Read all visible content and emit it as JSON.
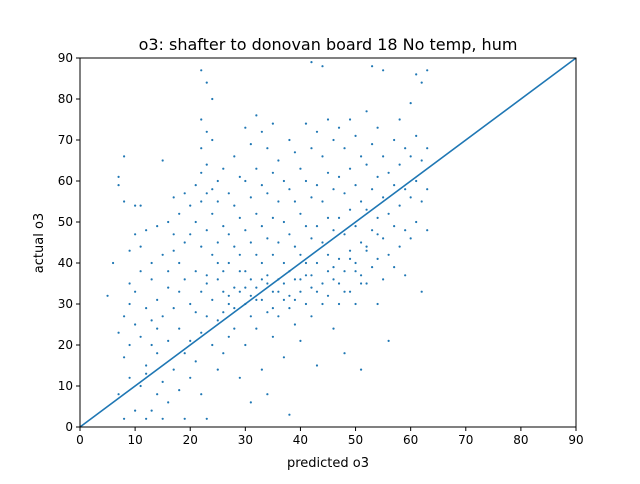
{
  "chart_data": {
    "type": "scatter",
    "title": "o3: shafter to donovan board 18 No temp, hum",
    "xlabel": "predicted o3",
    "ylabel": "actual o3",
    "xlim": [
      0,
      90
    ],
    "ylim": [
      0,
      90
    ],
    "xticks": [
      0,
      10,
      20,
      30,
      40,
      50,
      60,
      70,
      80,
      90
    ],
    "yticks": [
      0,
      10,
      20,
      30,
      40,
      50,
      60,
      70,
      80,
      90
    ],
    "grid": false,
    "marker_color": "#1f77b4",
    "line_color": "#1f77b4",
    "reference_line": {
      "x": [
        0,
        90
      ],
      "y": [
        0,
        90
      ]
    },
    "series": [
      {
        "points": [
          [
            5,
            32
          ],
          [
            6,
            40
          ],
          [
            7,
            23
          ],
          [
            7,
            8
          ],
          [
            7,
            61
          ],
          [
            7,
            59
          ],
          [
            8,
            66
          ],
          [
            8,
            55
          ],
          [
            8,
            17
          ],
          [
            8,
            2
          ],
          [
            8,
            27
          ],
          [
            9,
            12
          ],
          [
            9,
            35
          ],
          [
            9,
            30
          ],
          [
            9,
            43
          ],
          [
            9,
            20
          ],
          [
            10,
            54
          ],
          [
            10,
            47
          ],
          [
            10,
            4
          ],
          [
            10,
            25
          ],
          [
            10,
            33
          ],
          [
            11,
            54
          ],
          [
            11,
            44
          ],
          [
            11,
            10
          ],
          [
            11,
            22
          ],
          [
            11,
            38
          ],
          [
            12,
            29
          ],
          [
            12,
            2
          ],
          [
            12,
            15
          ],
          [
            12,
            48
          ],
          [
            12,
            13
          ],
          [
            13,
            26
          ],
          [
            13,
            36
          ],
          [
            13,
            4
          ],
          [
            13,
            40
          ],
          [
            13,
            20
          ],
          [
            14,
            49
          ],
          [
            14,
            31
          ],
          [
            14,
            8
          ],
          [
            14,
            24
          ],
          [
            14,
            18
          ],
          [
            15,
            65
          ],
          [
            15,
            42
          ],
          [
            15,
            27
          ],
          [
            15,
            11
          ],
          [
            15,
            2
          ],
          [
            16,
            50
          ],
          [
            16,
            34
          ],
          [
            16,
            21
          ],
          [
            16,
            6
          ],
          [
            16,
            38
          ],
          [
            17,
            56
          ],
          [
            17,
            43
          ],
          [
            17,
            29
          ],
          [
            17,
            14
          ],
          [
            17,
            47
          ],
          [
            18,
            52
          ],
          [
            18,
            40
          ],
          [
            18,
            33
          ],
          [
            18,
            24
          ],
          [
            18,
            9
          ],
          [
            19,
            57
          ],
          [
            19,
            45
          ],
          [
            19,
            36
          ],
          [
            19,
            18
          ],
          [
            19,
            2
          ],
          [
            20,
            54
          ],
          [
            20,
            47
          ],
          [
            20,
            30
          ],
          [
            20,
            21
          ],
          [
            20,
            12
          ],
          [
            21,
            59
          ],
          [
            21,
            50
          ],
          [
            21,
            38
          ],
          [
            21,
            28
          ],
          [
            21,
            16
          ],
          [
            22,
            87
          ],
          [
            22,
            75
          ],
          [
            22,
            68
          ],
          [
            22,
            62
          ],
          [
            22,
            55
          ],
          [
            22,
            44
          ],
          [
            22,
            33
          ],
          [
            22,
            23
          ],
          [
            22,
            8
          ],
          [
            23,
            84
          ],
          [
            23,
            72
          ],
          [
            23,
            64
          ],
          [
            23,
            57
          ],
          [
            23,
            48
          ],
          [
            23,
            37
          ],
          [
            23,
            27
          ],
          [
            23,
            2
          ],
          [
            24,
            80
          ],
          [
            24,
            70
          ],
          [
            24,
            58
          ],
          [
            24,
            52
          ],
          [
            24,
            42
          ],
          [
            24,
            31
          ],
          [
            24,
            20
          ],
          [
            25,
            60
          ],
          [
            25,
            55
          ],
          [
            25,
            45
          ],
          [
            25,
            36
          ],
          [
            25,
            26
          ],
          [
            25,
            14
          ],
          [
            26,
            63
          ],
          [
            26,
            49
          ],
          [
            26,
            38
          ],
          [
            26,
            28
          ],
          [
            26,
            18
          ],
          [
            27,
            57
          ],
          [
            27,
            47
          ],
          [
            27,
            40
          ],
          [
            27,
            32
          ],
          [
            27,
            22
          ],
          [
            28,
            66
          ],
          [
            28,
            54
          ],
          [
            28,
            44
          ],
          [
            28,
            34
          ],
          [
            28,
            24
          ],
          [
            29,
            61
          ],
          [
            29,
            51
          ],
          [
            29,
            42
          ],
          [
            29,
            33
          ],
          [
            29,
            12
          ],
          [
            30,
            73
          ],
          [
            30,
            60
          ],
          [
            30,
            48
          ],
          [
            30,
            38
          ],
          [
            30,
            30
          ],
          [
            30,
            20
          ],
          [
            31,
            69
          ],
          [
            31,
            56
          ],
          [
            31,
            45
          ],
          [
            31,
            36
          ],
          [
            31,
            27
          ],
          [
            31,
            6
          ],
          [
            32,
            76
          ],
          [
            32,
            63
          ],
          [
            32,
            52
          ],
          [
            32,
            42
          ],
          [
            32,
            34
          ],
          [
            32,
            24
          ],
          [
            33,
            72
          ],
          [
            33,
            59
          ],
          [
            33,
            49
          ],
          [
            33,
            40
          ],
          [
            33,
            31
          ],
          [
            33,
            14
          ],
          [
            34,
            68
          ],
          [
            34,
            57
          ],
          [
            34,
            46
          ],
          [
            34,
            37
          ],
          [
            34,
            28
          ],
          [
            34,
            8
          ],
          [
            35,
            74
          ],
          [
            35,
            62
          ],
          [
            35,
            51
          ],
          [
            35,
            42
          ],
          [
            35,
            33
          ],
          [
            35,
            22
          ],
          [
            36,
            65
          ],
          [
            36,
            55
          ],
          [
            36,
            45
          ],
          [
            36,
            36
          ],
          [
            36,
            27
          ],
          [
            37,
            60
          ],
          [
            37,
            50
          ],
          [
            37,
            40
          ],
          [
            37,
            31
          ],
          [
            37,
            17
          ],
          [
            38,
            70
          ],
          [
            38,
            58
          ],
          [
            38,
            47
          ],
          [
            38,
            38
          ],
          [
            38,
            29
          ],
          [
            38,
            3
          ],
          [
            39,
            67
          ],
          [
            39,
            55
          ],
          [
            39,
            44
          ],
          [
            39,
            36
          ],
          [
            39,
            25
          ],
          [
            40,
            63
          ],
          [
            40,
            52
          ],
          [
            40,
            42
          ],
          [
            40,
            33
          ],
          [
            40,
            21
          ],
          [
            41,
            74
          ],
          [
            41,
            60
          ],
          [
            41,
            49
          ],
          [
            41,
            40
          ],
          [
            41,
            30
          ],
          [
            42,
            89
          ],
          [
            42,
            68
          ],
          [
            42,
            56
          ],
          [
            42,
            46
          ],
          [
            42,
            37
          ],
          [
            42,
            27
          ],
          [
            43,
            72
          ],
          [
            43,
            59
          ],
          [
            43,
            49
          ],
          [
            43,
            40
          ],
          [
            43,
            15
          ],
          [
            44,
            88
          ],
          [
            44,
            66
          ],
          [
            44,
            55
          ],
          [
            44,
            45
          ],
          [
            44,
            35
          ],
          [
            45,
            75
          ],
          [
            45,
            62
          ],
          [
            45,
            51
          ],
          [
            45,
            42
          ],
          [
            45,
            32
          ],
          [
            46,
            70
          ],
          [
            46,
            58
          ],
          [
            46,
            48
          ],
          [
            46,
            39
          ],
          [
            46,
            24
          ],
          [
            47,
            73
          ],
          [
            47,
            61
          ],
          [
            47,
            51
          ],
          [
            47,
            41
          ],
          [
            47,
            30
          ],
          [
            48,
            68
          ],
          [
            48,
            57
          ],
          [
            48,
            47
          ],
          [
            48,
            38
          ],
          [
            48,
            18
          ],
          [
            49,
            75
          ],
          [
            49,
            63
          ],
          [
            49,
            53
          ],
          [
            49,
            43
          ],
          [
            49,
            33
          ],
          [
            50,
            71
          ],
          [
            50,
            59
          ],
          [
            50,
            49
          ],
          [
            50,
            40
          ],
          [
            50,
            30
          ],
          [
            51,
            66
          ],
          [
            51,
            55
          ],
          [
            51,
            45
          ],
          [
            51,
            35
          ],
          [
            51,
            14
          ],
          [
            52,
            77
          ],
          [
            52,
            64
          ],
          [
            52,
            53
          ],
          [
            52,
            43
          ],
          [
            52,
            35
          ],
          [
            53,
            88
          ],
          [
            53,
            69
          ],
          [
            53,
            58
          ],
          [
            53,
            48
          ],
          [
            53,
            39
          ],
          [
            54,
            73
          ],
          [
            54,
            61
          ],
          [
            54,
            51
          ],
          [
            54,
            41
          ],
          [
            54,
            30
          ],
          [
            55,
            87
          ],
          [
            55,
            66
          ],
          [
            55,
            56
          ],
          [
            55,
            46
          ],
          [
            55,
            36
          ],
          [
            56,
            62
          ],
          [
            56,
            52
          ],
          [
            56,
            42
          ],
          [
            56,
            21
          ],
          [
            57,
            70
          ],
          [
            57,
            59
          ],
          [
            57,
            49
          ],
          [
            57,
            39
          ],
          [
            58,
            75
          ],
          [
            58,
            64
          ],
          [
            58,
            54
          ],
          [
            58,
            44
          ],
          [
            59,
            68
          ],
          [
            59,
            58
          ],
          [
            59,
            48
          ],
          [
            59,
            37
          ],
          [
            60,
            79
          ],
          [
            60,
            66
          ],
          [
            60,
            56
          ],
          [
            60,
            46
          ],
          [
            61,
            86
          ],
          [
            61,
            71
          ],
          [
            61,
            60
          ],
          [
            61,
            50
          ],
          [
            62,
            84
          ],
          [
            62,
            65
          ],
          [
            62,
            55
          ],
          [
            62,
            33
          ],
          [
            63,
            87
          ],
          [
            63,
            68
          ],
          [
            63,
            58
          ],
          [
            63,
            48
          ],
          [
            23,
            35
          ],
          [
            25,
            40
          ],
          [
            27,
            30
          ],
          [
            29,
            38
          ],
          [
            31,
            32
          ],
          [
            33,
            36
          ],
          [
            35,
            29
          ],
          [
            37,
            35
          ],
          [
            39,
            31
          ],
          [
            41,
            37
          ],
          [
            43,
            33
          ],
          [
            45,
            38
          ],
          [
            47,
            35
          ],
          [
            49,
            41
          ],
          [
            51,
            37
          ],
          [
            26,
            33
          ],
          [
            28,
            29
          ],
          [
            30,
            34
          ],
          [
            32,
            31
          ],
          [
            34,
            35
          ],
          [
            36,
            33
          ],
          [
            38,
            32
          ],
          [
            40,
            36
          ],
          [
            42,
            34
          ],
          [
            44,
            30
          ],
          [
            46,
            36
          ],
          [
            48,
            33
          ],
          [
            50,
            38
          ],
          [
            52,
            44
          ],
          [
            54,
            47
          ]
        ]
      }
    ]
  }
}
